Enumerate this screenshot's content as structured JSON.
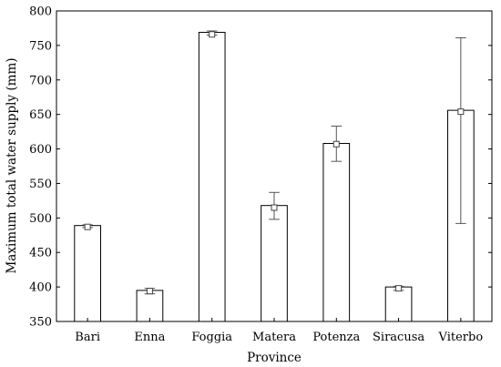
{
  "chart_data": {
    "type": "bar",
    "xlabel": "Province",
    "ylabel": "Maximum total water supply (mm)",
    "ylim": [
      350,
      800
    ],
    "yticks": [
      350,
      400,
      450,
      500,
      550,
      600,
      650,
      700,
      750,
      800
    ],
    "categories": [
      "Bari",
      "Enna",
      "Foggia",
      "Matera",
      "Potenza",
      "Siracusa",
      "Viterbo"
    ],
    "values": [
      489,
      395,
      769,
      518,
      608,
      400,
      656
    ],
    "means": [
      487,
      394,
      766,
      515,
      607,
      398,
      654
    ],
    "error_low": [
      486,
      390,
      765,
      498,
      582,
      395,
      492
    ],
    "error_high": [
      490,
      398,
      771,
      537,
      633,
      401,
      761
    ],
    "grid": false
  }
}
